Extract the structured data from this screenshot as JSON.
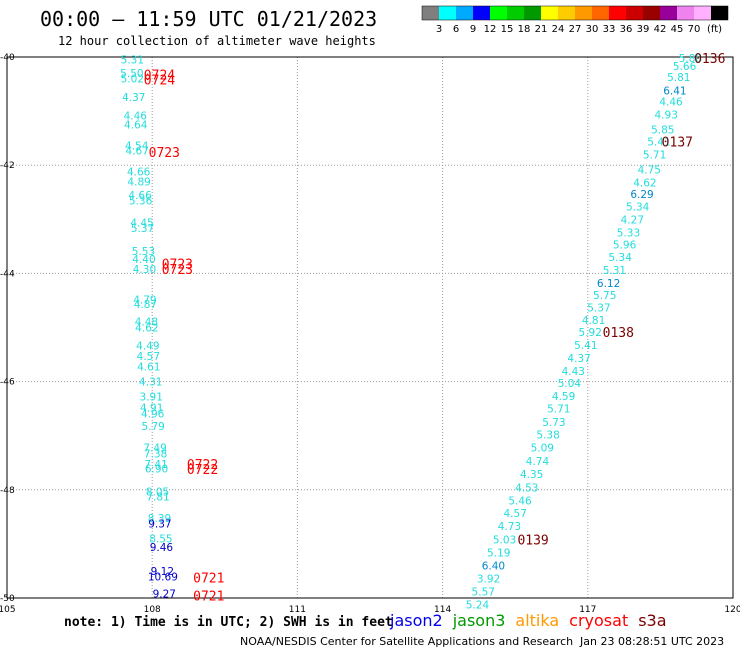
{
  "header": {
    "title": "00:00 — 11:59 UTC 01/21/2023",
    "subtitle": "12 hour collection of altimeter wave heights"
  },
  "colorbar": {
    "colors": [
      "#7f7f7f",
      "#00ffff",
      "#00aaff",
      "#0000ff",
      "#00ff00",
      "#00cc00",
      "#009900",
      "#ffff00",
      "#ffcc00",
      "#ff9900",
      "#ff6600",
      "#ff0000",
      "#cc0000",
      "#990000",
      "#990099",
      "#ee82ee",
      "#ffb0ff",
      "#000000"
    ],
    "labels": [
      "3",
      "6",
      "9",
      "12",
      "15",
      "18",
      "21",
      "24",
      "27",
      "30",
      "33",
      "36",
      "39",
      "42",
      "45",
      "70"
    ],
    "unit": "(ft)"
  },
  "chart_data": {
    "type": "scatter",
    "xlim": [
      105,
      120
    ],
    "ylim": [
      -50,
      -40
    ],
    "x_ticks": [
      "105",
      "108",
      "111",
      "114",
      "117",
      "120"
    ],
    "y_ticks": [
      "-40",
      "-42",
      "-44",
      "-46",
      "-48",
      "-50"
    ],
    "grid": true,
    "points": [
      {
        "x": 107.59,
        "y": -40.05,
        "label": "5.31",
        "color": "#22dddd"
      },
      {
        "x": 107.58,
        "y": -40.3,
        "label": "5.50",
        "color": "#22dddd"
      },
      {
        "x": 107.59,
        "y": -40.4,
        "label": "5.02",
        "color": "#22dddd"
      },
      {
        "x": 107.62,
        "y": -40.74,
        "label": "4.37",
        "color": "#22dddd"
      },
      {
        "x": 107.65,
        "y": -41.08,
        "label": "4.46",
        "color": "#22dddd"
      },
      {
        "x": 107.66,
        "y": -41.25,
        "label": "4.64",
        "color": "#22dddd"
      },
      {
        "x": 107.68,
        "y": -41.64,
        "label": "4.54",
        "color": "#22dddd"
      },
      {
        "x": 107.69,
        "y": -41.73,
        "label": "4.67",
        "color": "#22dddd"
      },
      {
        "x": 107.72,
        "y": -42.12,
        "label": "4.66",
        "color": "#22dddd"
      },
      {
        "x": 107.73,
        "y": -42.3,
        "label": "4.89",
        "color": "#22dddd"
      },
      {
        "x": 107.75,
        "y": -42.55,
        "label": "4.66",
        "color": "#22dddd"
      },
      {
        "x": 107.76,
        "y": -42.65,
        "label": "5.36",
        "color": "#22dddd"
      },
      {
        "x": 107.79,
        "y": -43.06,
        "label": "4.45",
        "color": "#22dddd"
      },
      {
        "x": 107.8,
        "y": -43.16,
        "label": "5.37",
        "color": "#22dddd"
      },
      {
        "x": 107.82,
        "y": -43.59,
        "label": "5.53",
        "color": "#22dddd"
      },
      {
        "x": 107.83,
        "y": -43.73,
        "label": "4.40",
        "color": "#22dddd"
      },
      {
        "x": 107.84,
        "y": -43.92,
        "label": "4.30",
        "color": "#22dddd"
      },
      {
        "x": 107.85,
        "y": -44.48,
        "label": "4.79",
        "color": "#22dddd"
      },
      {
        "x": 107.86,
        "y": -44.57,
        "label": "4.87",
        "color": "#22dddd"
      },
      {
        "x": 107.88,
        "y": -44.89,
        "label": "4.48",
        "color": "#22dddd"
      },
      {
        "x": 107.89,
        "y": -45.0,
        "label": "4.62",
        "color": "#22dddd"
      },
      {
        "x": 107.91,
        "y": -45.33,
        "label": "4.49",
        "color": "#22dddd"
      },
      {
        "x": 107.92,
        "y": -45.53,
        "label": "4.57",
        "color": "#22dddd"
      },
      {
        "x": 107.93,
        "y": -45.72,
        "label": "4.61",
        "color": "#22dddd"
      },
      {
        "x": 107.97,
        "y": -46.0,
        "label": "4.31",
        "color": "#22dddd"
      },
      {
        "x": 107.98,
        "y": -46.28,
        "label": "3.91",
        "color": "#22dddd"
      },
      {
        "x": 107.99,
        "y": -46.48,
        "label": "4.91",
        "color": "#22dddd"
      },
      {
        "x": 108.01,
        "y": -46.59,
        "label": "4.96",
        "color": "#22dddd"
      },
      {
        "x": 108.02,
        "y": -46.82,
        "label": "5.79",
        "color": "#22dddd"
      },
      {
        "x": 108.06,
        "y": -47.22,
        "label": "7.49",
        "color": "#22dddd"
      },
      {
        "x": 108.07,
        "y": -47.33,
        "label": "7.38",
        "color": "#22dddd"
      },
      {
        "x": 108.08,
        "y": -47.52,
        "label": "7.41",
        "color": "#22dddd"
      },
      {
        "x": 108.09,
        "y": -47.61,
        "label": "6.90",
        "color": "#22dddd"
      },
      {
        "x": 108.11,
        "y": -48.03,
        "label": "8.05",
        "color": "#22dddd"
      },
      {
        "x": 108.12,
        "y": -48.12,
        "label": "7.81",
        "color": "#22dddd"
      },
      {
        "x": 108.15,
        "y": -48.52,
        "label": "8.39",
        "color": "#22dddd"
      },
      {
        "x": 108.16,
        "y": -48.62,
        "label": "9.37",
        "color": "#0000cc"
      },
      {
        "x": 108.18,
        "y": -48.9,
        "label": "8.55",
        "color": "#22dddd"
      },
      {
        "x": 108.19,
        "y": -49.06,
        "label": "9.46",
        "color": "#0000cc"
      },
      {
        "x": 108.21,
        "y": -49.5,
        "label": "9.12",
        "color": "#0000cc"
      },
      {
        "x": 108.22,
        "y": -49.6,
        "label": "10.69",
        "color": "#0000cc"
      },
      {
        "x": 108.25,
        "y": -49.92,
        "label": "9.27",
        "color": "#0000cc"
      },
      {
        "x": 119.12,
        "y": -40.02,
        "label": "5.88",
        "color": "#22dddd"
      },
      {
        "x": 119.0,
        "y": -40.17,
        "label": "5.66",
        "color": "#22dddd"
      },
      {
        "x": 118.88,
        "y": -40.37,
        "label": "5.81",
        "color": "#22dddd"
      },
      {
        "x": 118.8,
        "y": -40.62,
        "label": "6.41",
        "color": "#0088cc"
      },
      {
        "x": 118.72,
        "y": -40.82,
        "label": "4.46",
        "color": "#22dddd"
      },
      {
        "x": 118.62,
        "y": -41.06,
        "label": "4.93",
        "color": "#22dddd"
      },
      {
        "x": 118.55,
        "y": -41.34,
        "label": "5.85",
        "color": "#22dddd"
      },
      {
        "x": 118.47,
        "y": -41.56,
        "label": "5.41",
        "color": "#22dddd"
      },
      {
        "x": 118.38,
        "y": -41.8,
        "label": "5.71",
        "color": "#22dddd"
      },
      {
        "x": 118.27,
        "y": -42.08,
        "label": "4.75",
        "color": "#22dddd"
      },
      {
        "x": 118.18,
        "y": -42.32,
        "label": "4.62",
        "color": "#22dddd"
      },
      {
        "x": 118.12,
        "y": -42.53,
        "label": "6.29",
        "color": "#0088cc"
      },
      {
        "x": 118.03,
        "y": -42.76,
        "label": "5.34",
        "color": "#22dddd"
      },
      {
        "x": 117.92,
        "y": -43.0,
        "label": "4.27",
        "color": "#22dddd"
      },
      {
        "x": 117.84,
        "y": -43.24,
        "label": "5.33",
        "color": "#22dddd"
      },
      {
        "x": 117.76,
        "y": -43.47,
        "label": "5.96",
        "color": "#22dddd"
      },
      {
        "x": 117.67,
        "y": -43.7,
        "label": "5.34",
        "color": "#22dddd"
      },
      {
        "x": 117.55,
        "y": -43.94,
        "label": "5.31",
        "color": "#22dddd"
      },
      {
        "x": 117.43,
        "y": -44.18,
        "label": "6.12",
        "color": "#0088cc"
      },
      {
        "x": 117.35,
        "y": -44.4,
        "label": "5.75",
        "color": "#22dddd"
      },
      {
        "x": 117.23,
        "y": -44.63,
        "label": "5.37",
        "color": "#22dddd"
      },
      {
        "x": 117.12,
        "y": -44.86,
        "label": "4.81",
        "color": "#22dddd"
      },
      {
        "x": 117.05,
        "y": -45.08,
        "label": "5.92",
        "color": "#22dddd"
      },
      {
        "x": 116.96,
        "y": -45.32,
        "label": "5.41",
        "color": "#22dddd"
      },
      {
        "x": 116.82,
        "y": -45.56,
        "label": "4.37",
        "color": "#22dddd"
      },
      {
        "x": 116.7,
        "y": -45.8,
        "label": "4.43",
        "color": "#22dddd"
      },
      {
        "x": 116.62,
        "y": -46.03,
        "label": "5.04",
        "color": "#22dddd"
      },
      {
        "x": 116.5,
        "y": -46.27,
        "label": "4.59",
        "color": "#22dddd"
      },
      {
        "x": 116.4,
        "y": -46.5,
        "label": "5.71",
        "color": "#22dddd"
      },
      {
        "x": 116.3,
        "y": -46.75,
        "label": "5.73",
        "color": "#22dddd"
      },
      {
        "x": 116.18,
        "y": -46.98,
        "label": "5.38",
        "color": "#22dddd"
      },
      {
        "x": 116.06,
        "y": -47.22,
        "label": "5.09",
        "color": "#22dddd"
      },
      {
        "x": 115.96,
        "y": -47.47,
        "label": "4.74",
        "color": "#22dddd"
      },
      {
        "x": 115.84,
        "y": -47.71,
        "label": "4.35",
        "color": "#22dddd"
      },
      {
        "x": 115.74,
        "y": -47.96,
        "label": "4.53",
        "color": "#22dddd"
      },
      {
        "x": 115.6,
        "y": -48.2,
        "label": "5.46",
        "color": "#22dddd"
      },
      {
        "x": 115.5,
        "y": -48.43,
        "label": "4.57",
        "color": "#22dddd"
      },
      {
        "x": 115.38,
        "y": -48.67,
        "label": "4.73",
        "color": "#22dddd"
      },
      {
        "x": 115.28,
        "y": -48.92,
        "label": "5.03",
        "color": "#22dddd"
      },
      {
        "x": 115.16,
        "y": -49.16,
        "label": "5.19",
        "color": "#22dddd"
      },
      {
        "x": 115.05,
        "y": -49.4,
        "label": "6.40",
        "color": "#0088cc"
      },
      {
        "x": 114.95,
        "y": -49.64,
        "label": "3.92",
        "color": "#22dddd"
      },
      {
        "x": 114.84,
        "y": -49.88,
        "label": "5.57",
        "color": "#22dddd"
      },
      {
        "x": 114.72,
        "y": -50.12,
        "label": "5.24",
        "color": "#22dddd"
      }
    ],
    "time_labels": [
      {
        "x": 108.15,
        "y": -40.32,
        "label": "0724",
        "color": "#ff0000"
      },
      {
        "x": 108.15,
        "y": -40.42,
        "label": "0724",
        "color": "#ff0000"
      },
      {
        "x": 108.25,
        "y": -41.76,
        "label": "0723",
        "color": "#ff0000"
      },
      {
        "x": 108.52,
        "y": -43.82,
        "label": "0723",
        "color": "#ff0000"
      },
      {
        "x": 108.52,
        "y": -43.92,
        "label": "0723",
        "color": "#ff0000"
      },
      {
        "x": 109.04,
        "y": -47.52,
        "label": "0722",
        "color": "#ff0000"
      },
      {
        "x": 109.04,
        "y": -47.62,
        "label": "0722",
        "color": "#ff0000"
      },
      {
        "x": 109.17,
        "y": -49.62,
        "label": "0721",
        "color": "#ff0000"
      },
      {
        "x": 109.17,
        "y": -49.95,
        "label": "0721",
        "color": "#ff0000"
      },
      {
        "x": 119.52,
        "y": -40.02,
        "label": "0136",
        "color": "#7a0000"
      },
      {
        "x": 118.85,
        "y": -41.56,
        "label": "0137",
        "color": "#7a0000"
      },
      {
        "x": 117.63,
        "y": -45.08,
        "label": "0138",
        "color": "#7a0000"
      },
      {
        "x": 115.87,
        "y": -48.92,
        "label": "0139",
        "color": "#7a0000"
      }
    ]
  },
  "footer": {
    "note": "note: 1) Time is in UTC; 2) SWH is in feet",
    "legend": [
      {
        "name": "jason2",
        "color": "#0000ee"
      },
      {
        "name": "jason3",
        "color": "#009900"
      },
      {
        "name": "altika",
        "color": "#ff9900"
      },
      {
        "name": "cryosat",
        "color": "#ff0000"
      },
      {
        "name": "s3a",
        "color": "#7a0000"
      }
    ],
    "credit": "NOAA/NESDIS Center for Satellite Applications and Research",
    "timestamp": "Jan 23 08:28:51 UTC 2023"
  }
}
